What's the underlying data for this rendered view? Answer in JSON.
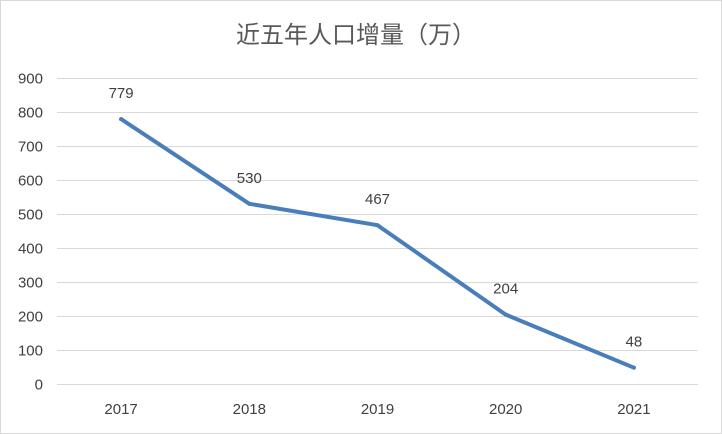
{
  "chart_data": {
    "type": "line",
    "title": "近五年人口增量（万）",
    "xlabel": "",
    "ylabel": "",
    "categories": [
      "2017",
      "2018",
      "2019",
      "2020",
      "2021"
    ],
    "series": [
      {
        "values": [
          779,
          530,
          467,
          204,
          48
        ],
        "color": "#4a7ebb"
      }
    ],
    "ylim": [
      0,
      900
    ],
    "yticks": [
      0,
      100,
      200,
      300,
      400,
      500,
      600,
      700,
      800,
      900
    ],
    "data_labels": [
      "779",
      "530",
      "467",
      "204",
      "48"
    ],
    "grid": true,
    "legend": "none"
  }
}
